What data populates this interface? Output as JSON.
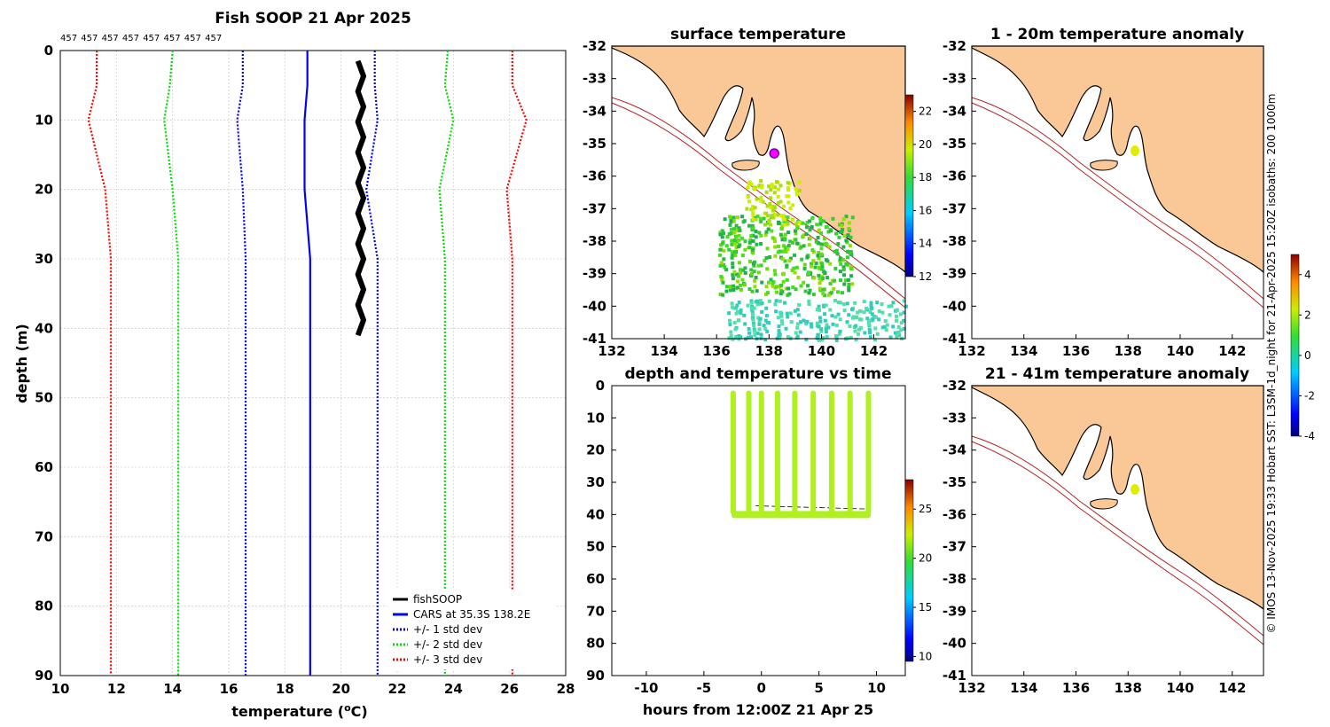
{
  "colors": {
    "fishsoop": "#000000",
    "cars": "#0000ff",
    "std1": "#0000ff",
    "std2": "#00dd00",
    "std3": "#ff0000",
    "land": "#f9c896",
    "isobath": "#b22222",
    "point": "#b0f020",
    "grid": "#d0d0d0"
  },
  "chart_data": [
    {
      "type": "line",
      "name": "profile",
      "title": "Fish SOOP 21 Apr 2025",
      "xlabel": "temperature (",
      "xlabel_unit": "C)",
      "xlabel_sup": "o",
      "ylabel": "depth (m)",
      "xlim": [
        10,
        28
      ],
      "ylim": [
        0,
        90
      ],
      "xticks": [
        "10",
        "12",
        "14",
        "16",
        "18",
        "20",
        "22",
        "24",
        "26",
        "28"
      ],
      "yticks": [
        "0",
        "10",
        "20",
        "30",
        "40",
        "50",
        "60",
        "70",
        "80",
        "90"
      ],
      "top_labels": [
        "457",
        "457",
        "457",
        "457",
        "457",
        "457",
        "457",
        "457"
      ],
      "legend": [
        {
          "label": "fishSOOP",
          "style": "solid",
          "color": "#000000"
        },
        {
          "label": "CARS at 35.3S 138.2E",
          "style": "solid",
          "color": "#0000ff"
        },
        {
          "label": "+/- 1 std dev",
          "style": "dotted",
          "color": "#0000ff"
        },
        {
          "label": "+/- 2 std dev",
          "style": "dotted",
          "color": "#00dd00"
        },
        {
          "label": "+/- 3 std dev",
          "style": "dotted",
          "color": "#ff0000"
        }
      ],
      "depths": [
        0,
        5,
        10,
        20,
        30,
        40,
        50,
        60,
        70,
        80,
        90
      ],
      "series": [
        {
          "name": "CARS",
          "color": "#0000ff",
          "dash": false,
          "values": [
            18.8,
            18.8,
            18.7,
            18.7,
            18.9,
            18.9,
            18.9,
            18.9,
            18.9,
            18.9,
            18.9
          ]
        },
        {
          "name": "-1 std",
          "color": "#0000ff",
          "dash": true,
          "values": [
            16.5,
            16.5,
            16.3,
            16.5,
            16.6,
            16.6,
            16.6,
            16.6,
            16.6,
            16.6,
            16.6
          ]
        },
        {
          "name": "+1 std",
          "color": "#0000ff",
          "dash": true,
          "values": [
            21.2,
            21.2,
            21.3,
            20.9,
            21.3,
            21.3,
            21.3,
            21.3,
            21.3,
            21.3,
            21.3
          ]
        },
        {
          "name": "-2 std",
          "color": "#00dd00",
          "dash": true,
          "values": [
            14.0,
            13.9,
            13.7,
            14.0,
            14.2,
            14.2,
            14.2,
            14.2,
            14.2,
            14.2,
            14.2
          ]
        },
        {
          "name": "+2 std",
          "color": "#00dd00",
          "dash": true,
          "values": [
            23.8,
            23.7,
            24.0,
            23.5,
            23.7,
            23.7,
            23.7,
            23.7,
            23.7,
            23.7,
            23.7
          ]
        },
        {
          "name": "-3 std",
          "color": "#ff0000",
          "dash": true,
          "values": [
            11.3,
            11.3,
            11.0,
            11.6,
            11.8,
            11.8,
            11.8,
            11.8,
            11.8,
            11.8,
            11.8
          ]
        },
        {
          "name": "+3 std",
          "color": "#ff0000",
          "dash": true,
          "values": [
            26.1,
            26.1,
            26.6,
            25.9,
            26.1,
            26.1,
            26.1,
            26.1,
            26.1,
            26.1,
            26.1
          ]
        }
      ],
      "fishsoop": {
        "temp_range": [
          20.6,
          20.8
        ],
        "depth_range": [
          1.5,
          41
        ]
      }
    },
    {
      "type": "scatter",
      "name": "surface",
      "title": "surface temperature",
      "xlim": [
        132,
        143.2
      ],
      "ylim": [
        -41,
        -32
      ],
      "xticks": [
        "132",
        "134",
        "136",
        "138",
        "140",
        "142"
      ],
      "yticks": [
        "-32",
        "-33",
        "-34",
        "-35",
        "-36",
        "-37",
        "-38",
        "-39",
        "-40",
        "-41"
      ],
      "colorbar": {
        "min": 12,
        "max": 23,
        "ticks": [
          "22",
          "20",
          "18",
          "16",
          "14",
          "12"
        ]
      },
      "marker": {
        "lon": 138.2,
        "lat": -35.3
      }
    },
    {
      "type": "scatter",
      "name": "timeseries",
      "title": "depth and temperature vs time",
      "xlabel": "hours from 12:00Z 21 Apr 25",
      "xlim": [
        -13,
        12.5
      ],
      "ylim": [
        0,
        90
      ],
      "xticks": [
        "-10",
        "-5",
        "0",
        "5",
        "10"
      ],
      "yticks": [
        "0",
        "10",
        "20",
        "30",
        "40",
        "50",
        "60",
        "70",
        "80",
        "90"
      ],
      "colorbar": {
        "min": 9.5,
        "max": 28,
        "ticks": [
          "25",
          "20",
          "15",
          "10"
        ]
      },
      "casts": [
        {
          "hour_start": -2.6,
          "hour_end": -2.3
        },
        {
          "hour_start": -1.3,
          "hour_end": -0.9
        },
        {
          "hour_start": -0.2,
          "hour_end": 0.2
        },
        {
          "hour_start": 1.2,
          "hour_end": 1.6
        },
        {
          "hour_start": 2.7,
          "hour_end": 3.1
        },
        {
          "hour_start": 4.3,
          "hour_end": 4.7
        },
        {
          "hour_start": 5.9,
          "hour_end": 6.3
        },
        {
          "hour_start": 7.5,
          "hour_end": 7.9
        },
        {
          "hour_start": 9.1,
          "hour_end": 9.5
        }
      ],
      "bottom_depth": 40,
      "top_depth": 1.5
    },
    {
      "type": "scatter",
      "name": "anom1",
      "title": "1 - 20m temperature anomaly",
      "xlim": [
        132,
        143.2
      ],
      "ylim": [
        -41,
        -32
      ],
      "xticks": [
        "132",
        "134",
        "136",
        "138",
        "140",
        "142"
      ],
      "yticks": [
        "-32",
        "-33",
        "-34",
        "-35",
        "-36",
        "-37",
        "-38",
        "-39",
        "-40",
        "-41"
      ],
      "colorbar": {
        "min": -4,
        "max": 5,
        "ticks": [
          "4",
          "2",
          "0",
          "-2",
          "-4"
        ]
      }
    },
    {
      "type": "scatter",
      "name": "anom2",
      "title": "21 - 41m temperature anomaly",
      "xlim": [
        132,
        143.2
      ],
      "ylim": [
        -41,
        -32
      ],
      "xticks": [
        "132",
        "134",
        "136",
        "138",
        "140",
        "142"
      ],
      "yticks": [
        "-32",
        "-33",
        "-34",
        "-35",
        "-36",
        "-37",
        "-38",
        "-39",
        "-40",
        "-41"
      ]
    }
  ],
  "side_text": "© IMOS 13-Nov-2025 19:33 Hobart SST: L3SM-1d_night for 21-Apr-2025 15:20Z isobaths: 200  1000m"
}
